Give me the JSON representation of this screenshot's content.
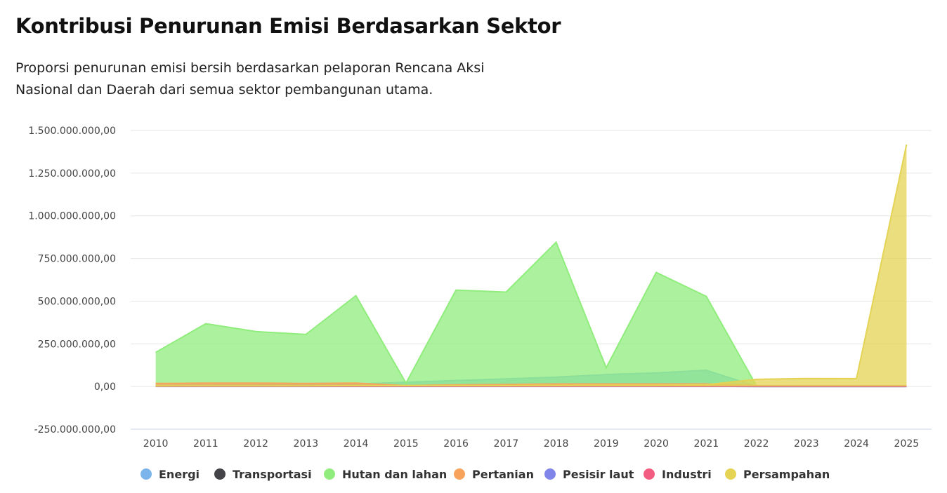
{
  "header": {
    "title": "Kontribusi Penurunan Emisi Berdasarkan Sektor",
    "subtitle_line1": "Proporsi penurunan emisi bersih berdasarkan pelaporan Rencana Aksi",
    "subtitle_line2": "Nasional dan Daerah dari semua sektor pembangunan utama."
  },
  "chart_data": {
    "type": "area",
    "title": "Kontribusi Penurunan Emisi Berdasarkan Sektor",
    "categories": [
      "2010",
      "2011",
      "2012",
      "2013",
      "2014",
      "2015",
      "2016",
      "2017",
      "2018",
      "2019",
      "2020",
      "2021",
      "2022",
      "2023",
      "2024",
      "2025"
    ],
    "ylim": [
      -250000000,
      1500000000
    ],
    "y_ticks": [
      {
        "value": 1500000000,
        "label": "1.500.000.000,00"
      },
      {
        "value": 1250000000,
        "label": "1.250.000.000,00"
      },
      {
        "value": 1000000000,
        "label": "1.000.000.000,00"
      },
      {
        "value": 750000000,
        "label": "750.000.000,00"
      },
      {
        "value": 500000000,
        "label": "500.000.000,00"
      },
      {
        "value": 250000000,
        "label": "250.000.000,00"
      },
      {
        "value": 0,
        "label": "0,00"
      },
      {
        "value": -250000000,
        "label": "-250.000.000,00"
      }
    ],
    "grid": true,
    "legend_position": "bottom",
    "series": [
      {
        "name": "Energi",
        "color": "#7cb5ec",
        "values": [
          5000000,
          8000000,
          10000000,
          12000000,
          15000000,
          25000000,
          35000000,
          45000000,
          55000000,
          70000000,
          80000000,
          95000000,
          2000000,
          2000000,
          2000000,
          2000000
        ]
      },
      {
        "name": "Transportasi",
        "color": "#434348",
        "values": [
          1000000,
          1000000,
          1000000,
          1000000,
          1000000,
          1000000,
          1000000,
          1000000,
          1000000,
          1000000,
          1000000,
          1000000,
          0,
          0,
          0,
          0
        ]
      },
      {
        "name": "Hutan dan lahan",
        "color": "#90ed7d",
        "values": [
          200000000,
          368000000,
          322000000,
          305000000,
          532000000,
          20000000,
          565000000,
          553000000,
          845000000,
          110000000,
          668000000,
          528000000,
          5000000,
          2000000,
          2000000,
          2000000
        ]
      },
      {
        "name": "Pertanian",
        "color": "#f7a35c",
        "values": [
          18000000,
          20000000,
          20000000,
          18000000,
          20000000,
          5000000,
          10000000,
          12000000,
          15000000,
          15000000,
          15000000,
          15000000,
          5000000,
          5000000,
          5000000,
          5000000
        ]
      },
      {
        "name": "Pesisir laut",
        "color": "#8085e9",
        "values": [
          0,
          0,
          0,
          0,
          0,
          0,
          0,
          0,
          0,
          0,
          0,
          0,
          0,
          0,
          0,
          0
        ]
      },
      {
        "name": "Industri",
        "color": "#f15c80",
        "values": [
          2000000,
          2000000,
          2000000,
          2000000,
          2000000,
          2000000,
          2000000,
          2000000,
          2000000,
          2000000,
          2000000,
          2000000,
          2000000,
          2000000,
          2000000,
          2000000
        ]
      },
      {
        "name": "Persampahan",
        "color": "#e4d354",
        "values": [
          3000000,
          4000000,
          4000000,
          4000000,
          5000000,
          5000000,
          6000000,
          6000000,
          7000000,
          8000000,
          8000000,
          10000000,
          42000000,
          47000000,
          46000000,
          1417000000
        ]
      }
    ]
  }
}
